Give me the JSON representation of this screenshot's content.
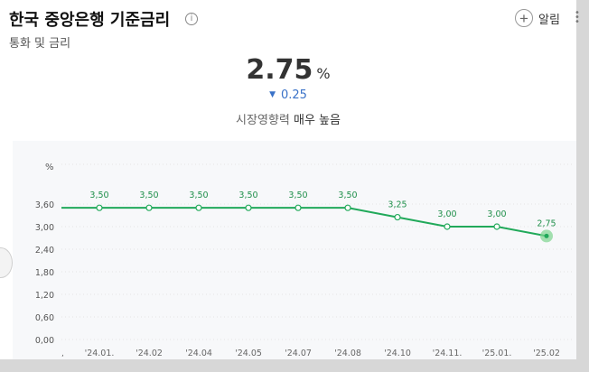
{
  "header": {
    "title": "한국 중앙은행 기준금리",
    "info_icon": "ⓘ",
    "subtitle": "통화 및 금리",
    "alarm_label": "알림"
  },
  "rate": {
    "value": "2.75",
    "unit": "%",
    "change": "0.25",
    "change_direction": "down",
    "change_color": "#3a72c8"
  },
  "impact": {
    "label": "시장영향력",
    "level": "매우 높음"
  },
  "colors": {
    "line": "#21a95a",
    "highlight": "#7dd48f"
  },
  "chart_data": {
    "type": "line",
    "ylabel": "%",
    "ylim": [
      0,
      3.6
    ],
    "yticks": [
      "0,00",
      "0,60",
      "1,20",
      "1,80",
      "2,40",
      "3,00",
      "3,60"
    ],
    "categories": [
      "'24.01.",
      "'24.02",
      "'24.04",
      "'24.05",
      "'24.07",
      "'24.08",
      "'24.10",
      "'24.11.",
      "'25.01.",
      "'25.02"
    ],
    "series": [
      {
        "values": [
          3.5,
          3.5,
          3.5,
          3.5,
          3.5,
          3.5,
          3.25,
          3.0,
          3.0,
          2.75
        ],
        "labels": [
          "3,50",
          "3,50",
          "3,50",
          "3,50",
          "3,50",
          "3,50",
          "3,25",
          "3,00",
          "3,00",
          "2,75"
        ]
      }
    ],
    "grid": true
  }
}
